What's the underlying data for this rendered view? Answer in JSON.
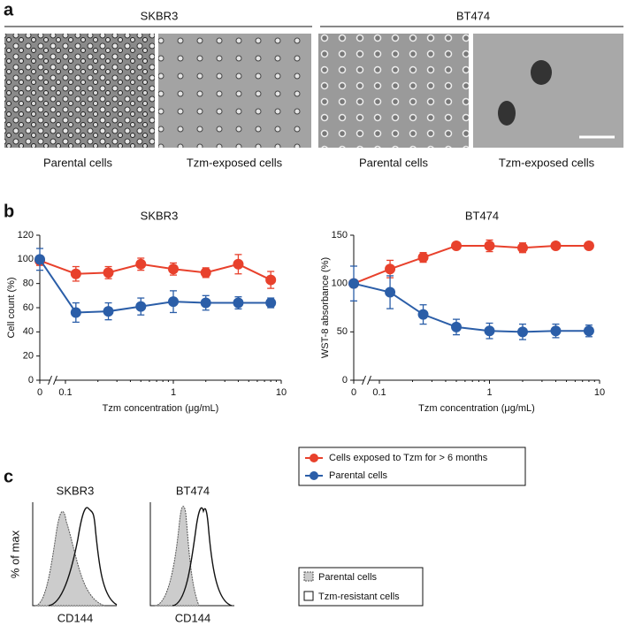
{
  "panel_a": {
    "label": "a",
    "groups": [
      {
        "title": "SKBR3",
        "captions": [
          "Parental cells",
          "Tzm-exposed cells"
        ]
      },
      {
        "title": "BT474",
        "captions": [
          "Parental cells",
          "Tzm-exposed cells"
        ]
      }
    ]
  },
  "panel_b": {
    "label": "b"
  },
  "chart_data": [
    {
      "type": "line",
      "title": "SKBR3",
      "ylabel": "Cell count (%)",
      "xlabel": "Tzm concentration (μg/mL)",
      "x": [
        0,
        0.125,
        0.25,
        0.5,
        1,
        2,
        4,
        8
      ],
      "xlim": [
        0,
        10
      ],
      "xscale": "log",
      "x_break": true,
      "xticks": [
        0,
        0.1,
        1,
        10
      ],
      "ylim": [
        0,
        120
      ],
      "yticks": [
        0,
        20,
        40,
        60,
        80,
        100,
        120
      ],
      "series": [
        {
          "name": "Cells exposed to Tzm for > 6 months",
          "color": "#e8412c",
          "values": [
            99,
            88,
            89,
            96,
            92,
            89,
            96,
            83
          ],
          "errors": [
            4,
            6,
            5,
            5,
            5,
            4,
            8,
            7
          ]
        },
        {
          "name": "Parental cells",
          "color": "#2b5ea8",
          "values": [
            100,
            56,
            57,
            61,
            65,
            64,
            64,
            64
          ],
          "errors": [
            9,
            8,
            7,
            7,
            9,
            6,
            5,
            4
          ]
        }
      ]
    },
    {
      "type": "line",
      "title": "BT474",
      "ylabel": "WST-8 absorbance (%)",
      "xlabel": "Tzm concentration (μg/mL)",
      "x": [
        0,
        0.125,
        0.25,
        0.5,
        1,
        2,
        4,
        8
      ],
      "xlim": [
        0,
        10
      ],
      "xscale": "log",
      "x_break": true,
      "xticks": [
        0,
        0.1,
        1,
        10
      ],
      "ylim": [
        0,
        150
      ],
      "yticks": [
        0,
        50,
        100,
        150
      ],
      "series": [
        {
          "color": "#e8412c",
          "values": [
            100,
            115,
            127,
            139,
            139,
            137,
            139,
            139
          ],
          "errors": [
            3,
            9,
            5,
            3,
            6,
            5,
            3,
            2
          ]
        },
        {
          "color": "#2b5ea8",
          "values": [
            100,
            91,
            68,
            55,
            51,
            50,
            51,
            51
          ],
          "errors": [
            18,
            17,
            10,
            8,
            8,
            8,
            7,
            6
          ]
        }
      ]
    }
  ],
  "panel_c": {
    "label": "c",
    "ylabel": "% of max",
    "plots": [
      {
        "title": "SKBR3",
        "xlabel": "CD144"
      },
      {
        "title": "BT474",
        "xlabel": "CD144"
      }
    ],
    "legend": [
      "Parental cells",
      "Tzm-resistant cells"
    ]
  }
}
